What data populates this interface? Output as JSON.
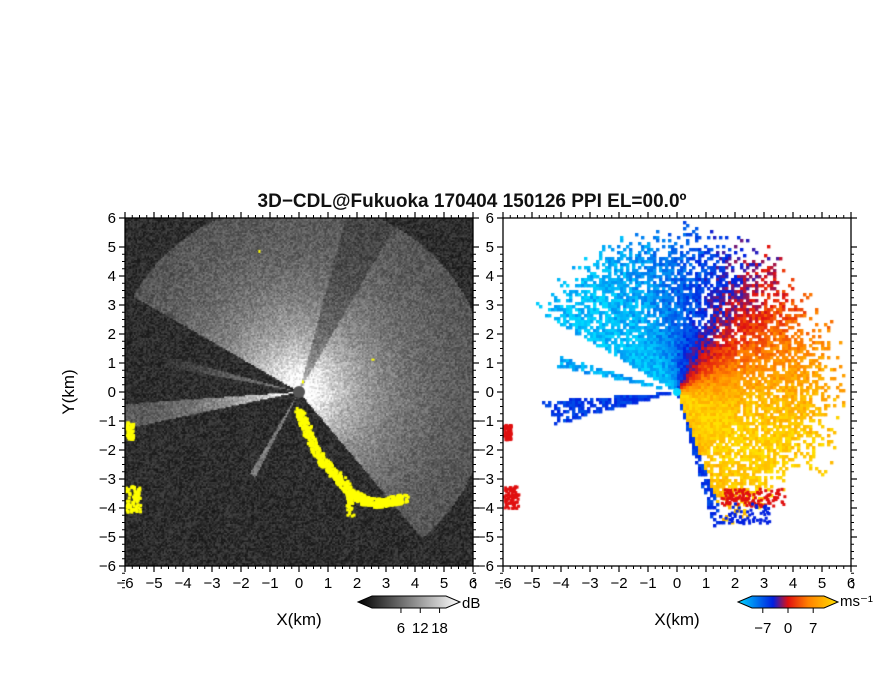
{
  "chart_data": [
    {
      "type": "heatmap",
      "panel": "reflectivity",
      "title": "3D−CDL@Fukuoka 170404 150126 PPI EL=00.0º",
      "xlabel": "X(km)",
      "ylabel": "Y(km)",
      "xlim": [
        -6,
        6
      ],
      "ylim": [
        -6,
        6
      ],
      "x_ticks": [
        "−6",
        "−5",
        "−4",
        "−3",
        "−2",
        "−1",
        "0",
        "1",
        "2",
        "3",
        "4",
        "5",
        "6"
      ],
      "y_ticks": [
        "6",
        "5",
        "4",
        "3",
        "2",
        "1",
        "0",
        "−1",
        "−2",
        "−3",
        "−4",
        "−5",
        "−6"
      ],
      "colorbar": {
        "unit": "dB",
        "ticks": [
          {
            "value": 6,
            "label": "6"
          },
          {
            "value": 12,
            "label": "12"
          },
          {
            "value": 18,
            "label": "18"
          }
        ],
        "range": [
          -3,
          20
        ],
        "colors": [
          "#000000",
          "#ffffff"
        ]
      },
      "overlay_color": "#ffff00",
      "background_color": "#1c1c1c",
      "grid": false
    },
    {
      "type": "heatmap",
      "panel": "doppler-velocity",
      "xlabel": "X(km)",
      "xlim": [
        -6,
        6
      ],
      "ylim": [
        -6,
        6
      ],
      "x_ticks": [
        "−6",
        "−5",
        "−4",
        "−3",
        "−2",
        "−1",
        "0",
        "1",
        "2",
        "3",
        "4",
        "5",
        "6"
      ],
      "y_ticks": [
        "6",
        "5",
        "4",
        "3",
        "2",
        "1",
        "0",
        "−1",
        "−2",
        "−3",
        "−4",
        "−5",
        "−6"
      ],
      "colorbar": {
        "unit": "ms⁻¹",
        "ticks": [
          {
            "value": -7,
            "label": "−7"
          },
          {
            "value": 0,
            "label": "0"
          },
          {
            "value": 7,
            "label": "7"
          }
        ],
        "range": [
          -10,
          10
        ],
        "colors": [
          "#00d8ff",
          "#0020e0",
          "#e01010",
          "#ff8000",
          "#ffe000"
        ]
      },
      "folded_color": "#e01010",
      "grid": false
    }
  ]
}
